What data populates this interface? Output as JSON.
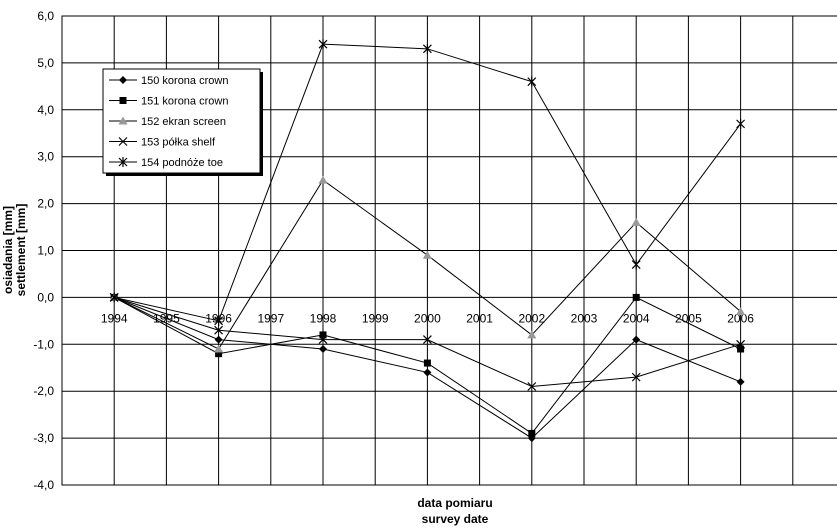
{
  "chart_data": {
    "type": "line",
    "title": "",
    "xlabel_line1": "data pomiaru",
    "xlabel_line2": "survey date",
    "ylabel_line1": "osiadania [mm]",
    "ylabel_line2": "settlement [mm]",
    "x_ticks": [
      "1994",
      "1995",
      "1996",
      "1997",
      "1998",
      "1999",
      "2000",
      "2001",
      "2002",
      "2003",
      "2004",
      "2005",
      "2006"
    ],
    "y_ticks": [
      "6,0",
      "5,0",
      "4,0",
      "3,0",
      "2,0",
      "1,0",
      "0,0",
      "-1,0",
      "-2,0",
      "-3,0",
      "-4,0"
    ],
    "xlim": [
      1994,
      2006
    ],
    "ylim": [
      -4.0,
      6.0
    ],
    "grid": true,
    "legend_position": "top-left",
    "series": [
      {
        "name": "150 korona  crown",
        "marker": "diamond",
        "color": "#000000",
        "x": [
          1994,
          1996,
          1998,
          2000,
          2002,
          2004,
          2006
        ],
        "y": [
          0.0,
          -0.9,
          -1.1,
          -1.6,
          -3.0,
          -0.9,
          -1.8
        ]
      },
      {
        "name": "151 korona  crown",
        "marker": "square",
        "color": "#000000",
        "x": [
          1994,
          1996,
          1998,
          2000,
          2002,
          2004,
          2006
        ],
        "y": [
          0.0,
          -1.2,
          -0.8,
          -1.4,
          -2.9,
          0.0,
          -1.1
        ]
      },
      {
        "name": "152 ekran  screen",
        "marker": "triangle",
        "color": "#999999",
        "x": [
          1994,
          1996,
          1998,
          2000,
          2002,
          2004,
          2006
        ],
        "y": [
          0.0,
          -1.1,
          2.5,
          0.9,
          -0.8,
          1.6,
          -0.3
        ]
      },
      {
        "name": "153 półka  shelf",
        "marker": "x",
        "color": "#000000",
        "x": [
          1994,
          1996,
          1998,
          2000,
          2002,
          2004,
          2006
        ],
        "y": [
          0.0,
          -0.7,
          -0.9,
          -0.9,
          -1.9,
          -1.7,
          -1.0
        ]
      },
      {
        "name": "154 podnóże  toe",
        "marker": "asterisk",
        "color": "#000000",
        "x": [
          1994,
          1996,
          1998,
          2000,
          2002,
          2004,
          2006
        ],
        "y": [
          0.0,
          -0.5,
          5.4,
          5.3,
          4.6,
          0.7,
          3.7
        ]
      }
    ]
  }
}
